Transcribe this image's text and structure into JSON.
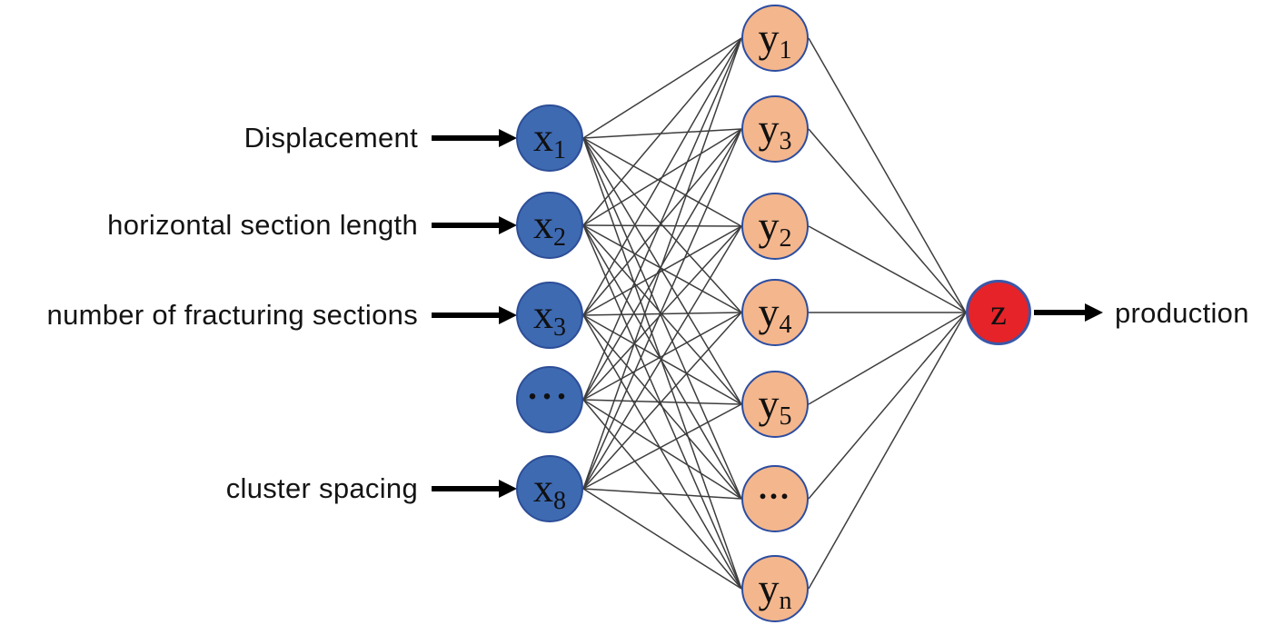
{
  "diagram": {
    "type": "neural-network",
    "input_labels": [
      "Displacement",
      "horizontal section length",
      "number of fracturing sections",
      "cluster spacing"
    ],
    "output_label": "production",
    "nodes": {
      "inputs": [
        {
          "main": "x",
          "sub": "1"
        },
        {
          "main": "x",
          "sub": "2"
        },
        {
          "main": "x",
          "sub": "3"
        },
        {
          "main": "...",
          "sub": ""
        },
        {
          "main": "x",
          "sub": "8"
        }
      ],
      "hidden": [
        {
          "main": "y",
          "sub": "1"
        },
        {
          "main": "y",
          "sub": "3"
        },
        {
          "main": "y",
          "sub": "2"
        },
        {
          "main": "y",
          "sub": "4"
        },
        {
          "main": "y",
          "sub": "5"
        },
        {
          "main": "...",
          "sub": ""
        },
        {
          "main": "y",
          "sub": "n"
        }
      ],
      "output": {
        "main": "z",
        "sub": ""
      }
    },
    "connections": {
      "input_to_hidden": "full",
      "hidden_to_output": "full"
    },
    "colors": {
      "input_fill": "#3e6ab2",
      "input_stroke": "#2d4e97",
      "hidden_fill": "#f4b68c",
      "hidden_stroke": "#2c4da0",
      "output_fill": "#e62329",
      "output_stroke": "#3a57a8",
      "wire": "#3d3d3d",
      "arrow": "#000000"
    }
  }
}
